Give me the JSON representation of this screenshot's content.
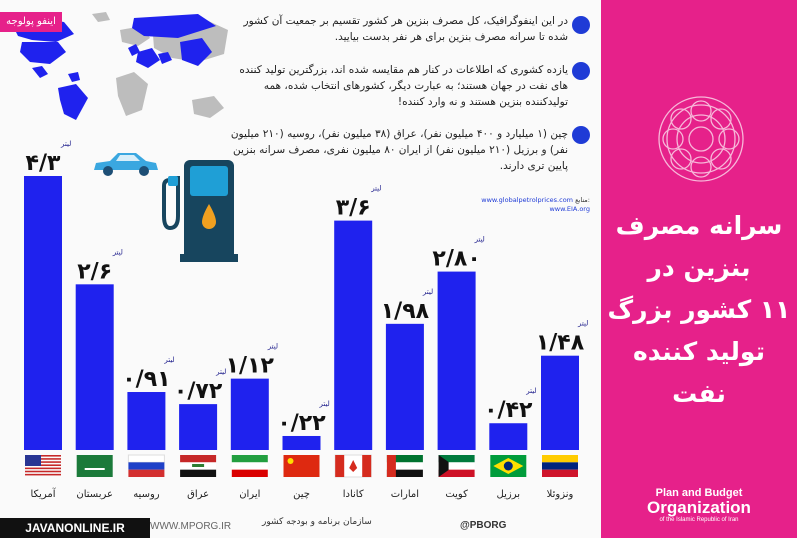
{
  "brand": "اینفو پولوجه",
  "bullets": [
    "در این اینفوگرافیک، کل مصرف بنزین هر کشور تقسیم بر جمعیت آن کشور شده تا سرانه مصرف بنزین برای هر نفر بدست بیایید.",
    "یازده کشوری که اطلاعات در کنار هم مقایسه شده اند، بزرگترین تولید کننده های نفت در جهان هستند؛ به عبارت دیگر، کشورهای انتخاب شده، همه تولیدکننده بنزین هستند و نه وارد کننده!",
    "چین (۱ میلیارد و ۴۰۰ میلیون نفر)، عراق (۳۸ میلیون نفر)، روسیه (۲۱۰ میلیون نفر) و برزیل (۲۱۰ میلیون نفر) از ایران ۸۰ میلیون نفری، مصرف سرانه بنزین پایین تری دارند."
  ],
  "sources": {
    "label": "منابع:",
    "items": [
      "www.globalpetrolprices.com",
      "www.EIA.org"
    ]
  },
  "panel": {
    "title_lines": [
      "سرانه مصرف",
      "بنزین در",
      "۱۱ کشور بزرگ",
      "تولید کننده نفت"
    ],
    "org_line1": "Plan and Budget",
    "org_line2": "Organization",
    "org_line3": "of the Islamic Republic of Iran"
  },
  "footer": {
    "site": "JAVANONLINE.IR",
    "site2": "WWW.MPORG.IR",
    "signature": "سازمان برنامه و بودجه کشور",
    "handle": "@PBORG"
  },
  "chart_data": {
    "type": "bar",
    "unit": "لیتر",
    "categories": [
      "آمریکا",
      "عربستان",
      "روسیه",
      "عراق",
      "ایران",
      "چین",
      "کانادا",
      "امارات",
      "کویت",
      "برزیل",
      "ونزوئلا"
    ],
    "values": [
      4.3,
      2.6,
      0.91,
      0.72,
      1.12,
      0.22,
      3.6,
      1.98,
      2.8,
      0.42,
      1.48
    ],
    "value_labels": [
      "۴/۳",
      "۲/۶",
      "۰/۹۱",
      "۰/۷۲",
      "۱/۱۲",
      "۰/۲۲",
      "۳/۶",
      "۱/۹۸",
      "۲/۸۰",
      "۰/۴۲",
      "۱/۴۸"
    ],
    "colors": {
      "bar": "#1f22ee",
      "accent": "#e6218a",
      "bullet": "#1f3bd6"
    }
  }
}
